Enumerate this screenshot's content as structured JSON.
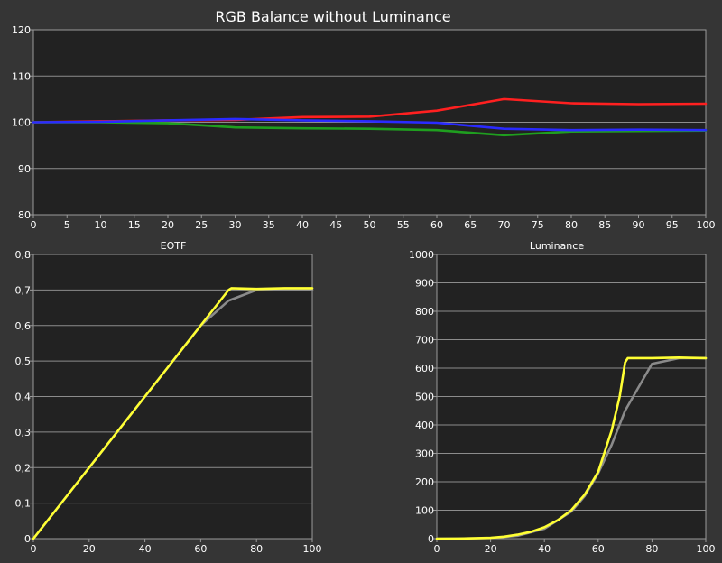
{
  "chart_data": [
    {
      "type": "line",
      "title": "RGB Balance without Luminance",
      "xlabel": "",
      "ylabel": "",
      "xlim": [
        0,
        100
      ],
      "ylim": [
        80,
        120
      ],
      "xticks": [
        0,
        5,
        10,
        15,
        20,
        25,
        30,
        35,
        40,
        45,
        50,
        55,
        60,
        65,
        70,
        75,
        80,
        85,
        90,
        95,
        100
      ],
      "yticks": [
        80,
        90,
        100,
        110,
        120
      ],
      "ytick_labels": [
        "80",
        "90",
        "100",
        "110",
        "120"
      ],
      "grid": "horizontal",
      "series": [
        {
          "color": "#ff2020",
          "x": [
            0,
            10,
            20,
            30,
            40,
            50,
            60,
            70,
            80,
            90,
            100
          ],
          "values": [
            100,
            100.2,
            100.4,
            100.5,
            101.1,
            101.2,
            102.5,
            105,
            104.1,
            103.9,
            104
          ]
        },
        {
          "color": "#1f9f1f",
          "x": [
            0,
            10,
            20,
            30,
            40,
            50,
            60,
            70,
            80,
            90,
            100
          ],
          "values": [
            100,
            100,
            99.8,
            98.9,
            98.7,
            98.6,
            98.3,
            97.2,
            98,
            98.1,
            98.2
          ]
        },
        {
          "color": "#2a2aff",
          "x": [
            0,
            10,
            20,
            30,
            40,
            50,
            60,
            70,
            80,
            90,
            100
          ],
          "values": [
            100,
            100.1,
            100.4,
            100.7,
            100.4,
            100.2,
            99.9,
            98.6,
            98.3,
            98.4,
            98.3
          ]
        }
      ]
    },
    {
      "type": "line",
      "title": "EOTF",
      "xlabel": "",
      "ylabel": "",
      "xlim": [
        0,
        100
      ],
      "ylim": [
        0,
        0.8
      ],
      "xticks": [
        0,
        20,
        40,
        60,
        80,
        100
      ],
      "yticks": [
        0,
        0.1,
        0.2,
        0.3,
        0.4,
        0.5,
        0.6,
        0.7,
        0.8
      ],
      "ytick_labels": [
        "0",
        "0,1",
        "0,2",
        "0,3",
        "0,4",
        "0,5",
        "0,6",
        "0,7",
        "0,8"
      ],
      "grid": "horizontal",
      "series": [
        {
          "color": "#8a8a8a",
          "x": [
            0,
            10,
            20,
            30,
            40,
            50,
            60,
            70,
            80,
            90,
            100
          ],
          "values": [
            0,
            0.1,
            0.2,
            0.3,
            0.4,
            0.5,
            0.6,
            0.67,
            0.7,
            0.7,
            0.7
          ]
        },
        {
          "color": "#ffff33",
          "x": [
            0,
            10,
            20,
            30,
            40,
            50,
            60,
            70,
            71,
            80,
            90,
            100
          ],
          "values": [
            0,
            0.1,
            0.2,
            0.3,
            0.4,
            0.5,
            0.6,
            0.7,
            0.705,
            0.703,
            0.705,
            0.705
          ]
        }
      ]
    },
    {
      "type": "line",
      "title": "Luminance",
      "xlabel": "",
      "ylabel": "",
      "xlim": [
        0,
        100
      ],
      "ylim": [
        0,
        1000
      ],
      "xticks": [
        0,
        20,
        40,
        60,
        80,
        100
      ],
      "yticks": [
        0,
        100,
        200,
        300,
        400,
        500,
        600,
        700,
        800,
        900,
        1000
      ],
      "ytick_labels": [
        "0",
        "100",
        "200",
        "300",
        "400",
        "500",
        "600",
        "700",
        "800",
        "900",
        "1000"
      ],
      "grid": "horizontal",
      "series": [
        {
          "color": "#8a8a8a",
          "x": [
            0,
            10,
            20,
            30,
            40,
            50,
            55,
            60,
            65,
            70,
            80,
            90,
            100
          ],
          "values": [
            0,
            0.5,
            2,
            10,
            35,
            95,
            150,
            230,
            330,
            450,
            615,
            635,
            635
          ]
        },
        {
          "color": "#ffff33",
          "x": [
            0,
            10,
            20,
            25,
            30,
            35,
            40,
            45,
            50,
            55,
            60,
            65,
            68,
            70,
            71,
            80,
            90,
            100
          ],
          "values": [
            0,
            0.5,
            3,
            7,
            14,
            24,
            40,
            65,
            100,
            155,
            235,
            380,
            500,
            620,
            635,
            635,
            637,
            635
          ]
        }
      ]
    }
  ]
}
